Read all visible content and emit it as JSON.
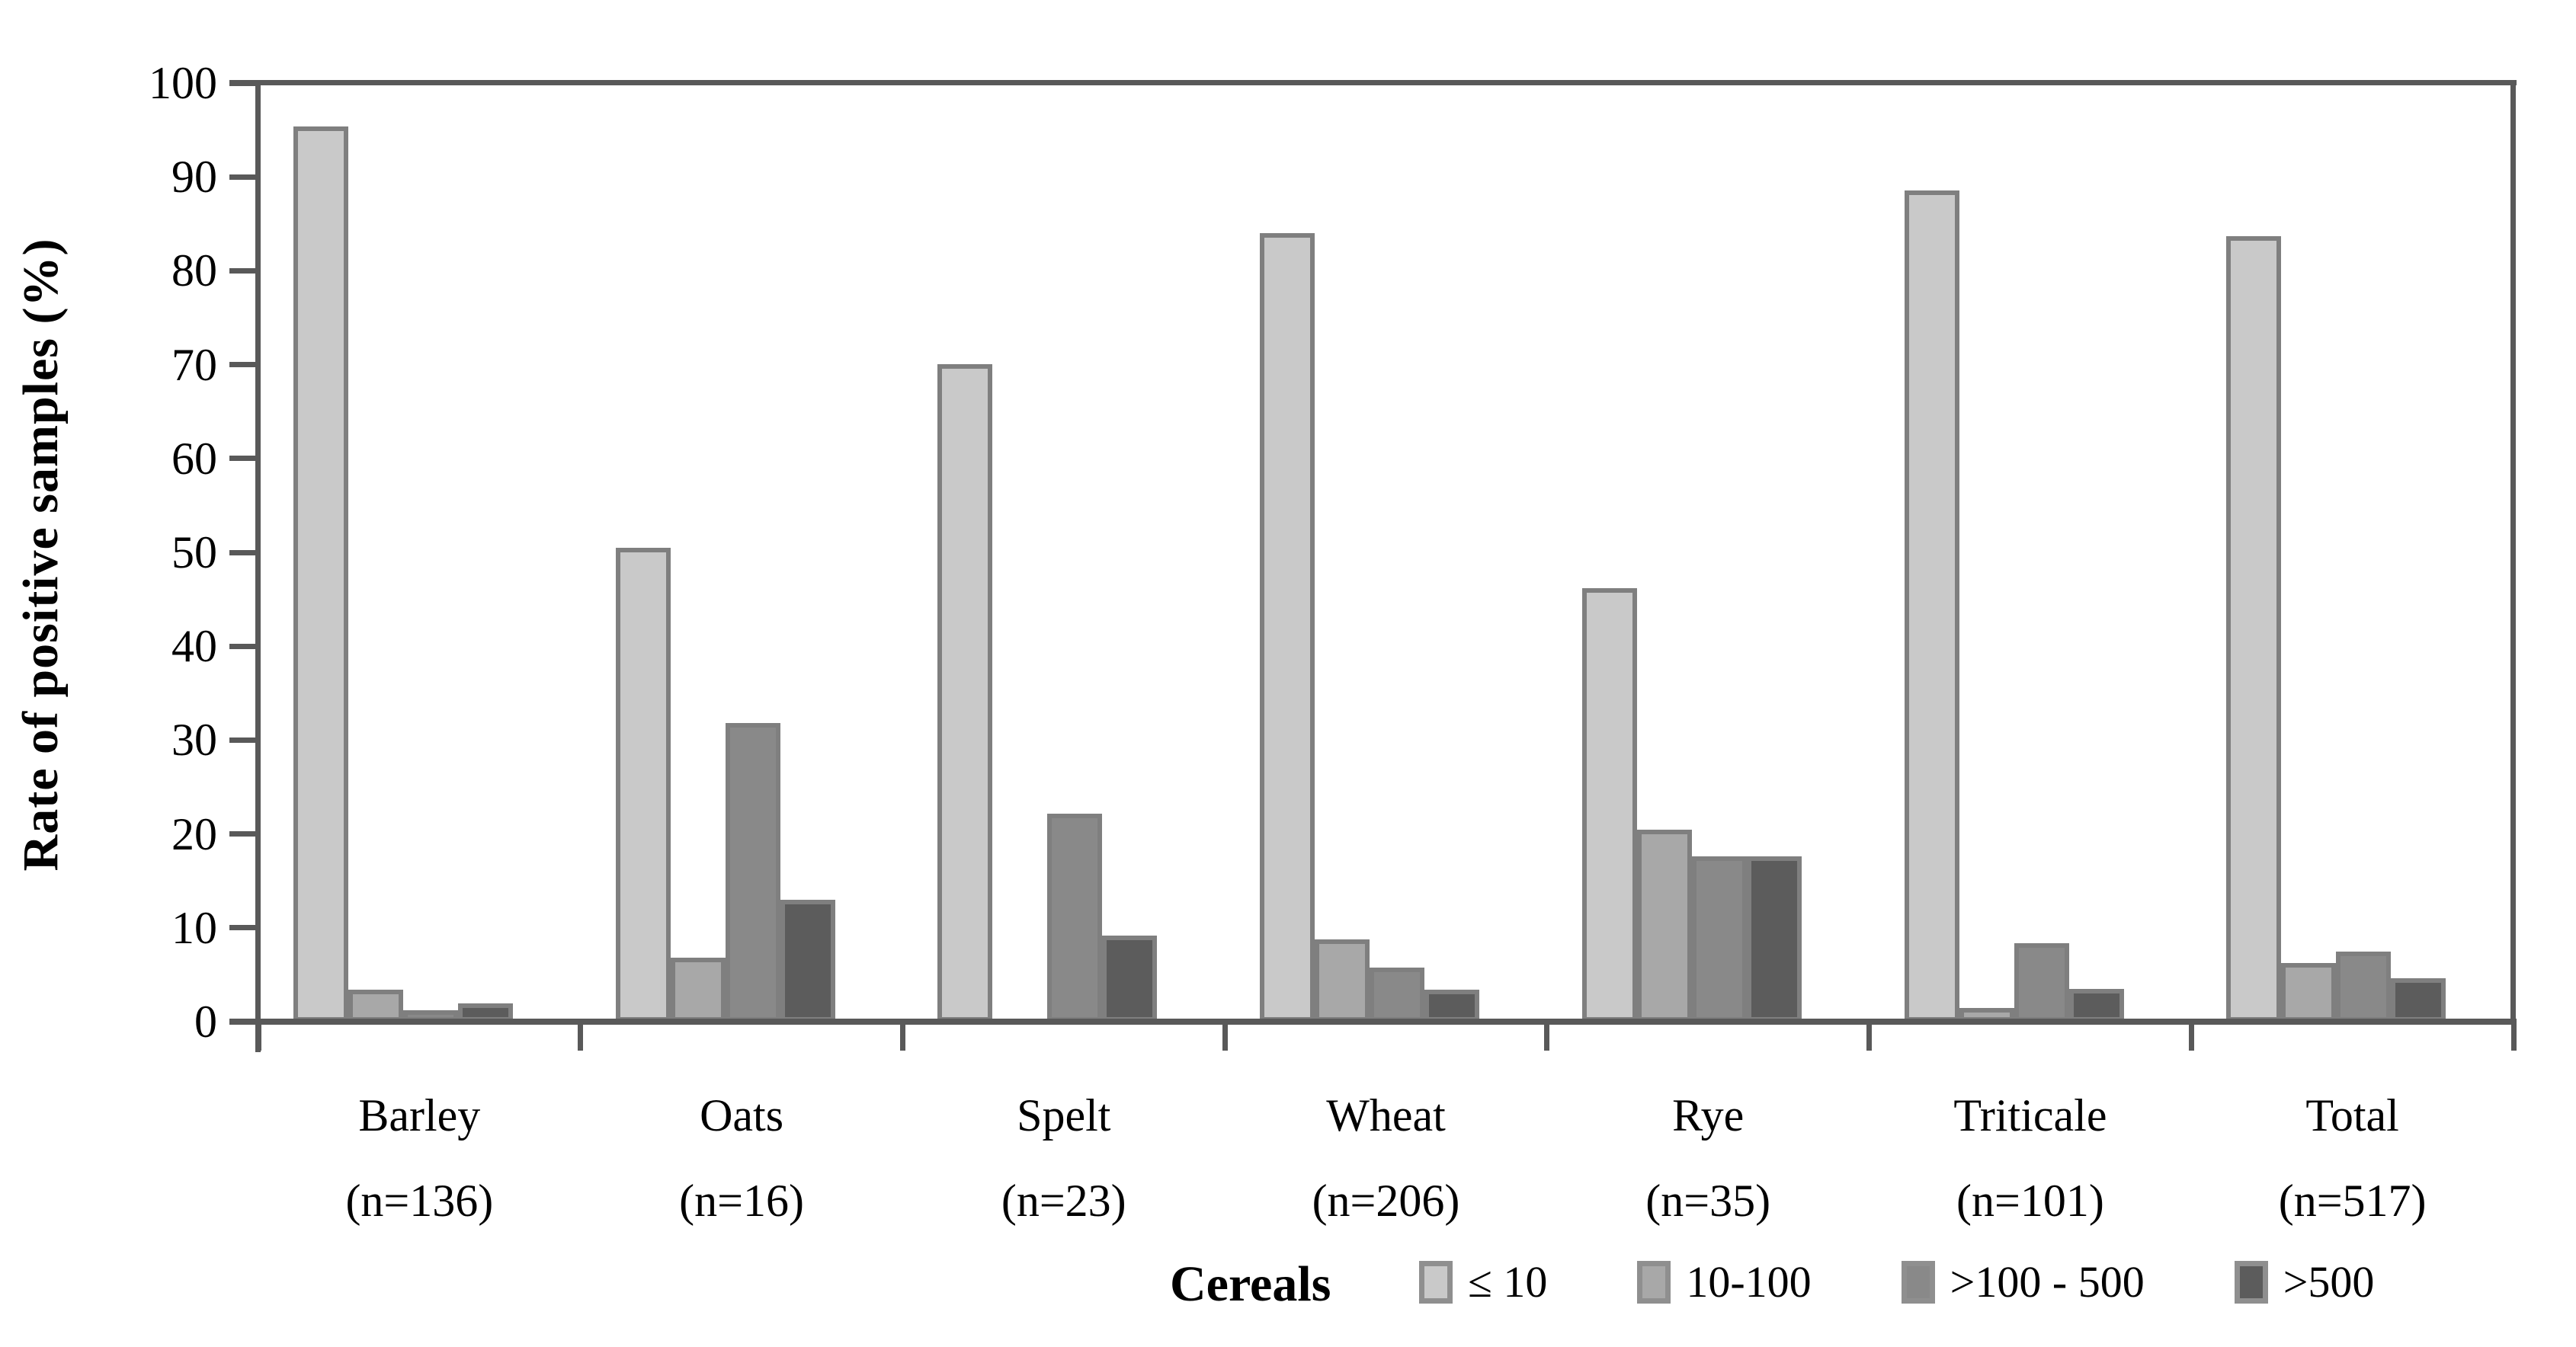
{
  "chart_data": {
    "type": "bar",
    "title": "",
    "ylabel": "Rate of positive samples (%)",
    "xlabel": "Cereals",
    "ylim": [
      0,
      100
    ],
    "yticks": [
      0,
      10,
      20,
      30,
      40,
      50,
      60,
      70,
      80,
      90,
      100
    ],
    "grid": false,
    "legend_position": "bottom",
    "categories": [
      "Barley",
      "Oats",
      "Spelt",
      "Wheat",
      "Rye",
      "Triticale",
      "Total"
    ],
    "category_sublabels": [
      "(n=136)",
      "(n=16)",
      "(n=23)",
      "(n=206)",
      "(n=35)",
      "(n=101)",
      "(n=517)"
    ],
    "series": [
      {
        "name": "≤ 10",
        "color": "#c9c9c9",
        "values": [
          94.9,
          50.0,
          69.6,
          83.5,
          45.7,
          88.1,
          83.2
        ]
      },
      {
        "name": "10-100",
        "color": "#a8a8a8",
        "values": [
          2.9,
          6.3,
          0.0,
          8.3,
          20.0,
          1.0,
          5.8
        ]
      },
      {
        "name": ">100 - 500",
        "color": "#898989",
        "values": [
          0.7,
          31.3,
          21.7,
          5.3,
          17.1,
          7.9,
          7.0
        ]
      },
      {
        "name": ">500",
        "color": "#5c5c5c",
        "values": [
          1.5,
          12.5,
          8.7,
          2.9,
          17.1,
          3.0,
          4.1
        ]
      }
    ],
    "colors": {
      "axis": "#595959",
      "bar_border": "#7f7f7f",
      "background": "#ffffff"
    }
  }
}
